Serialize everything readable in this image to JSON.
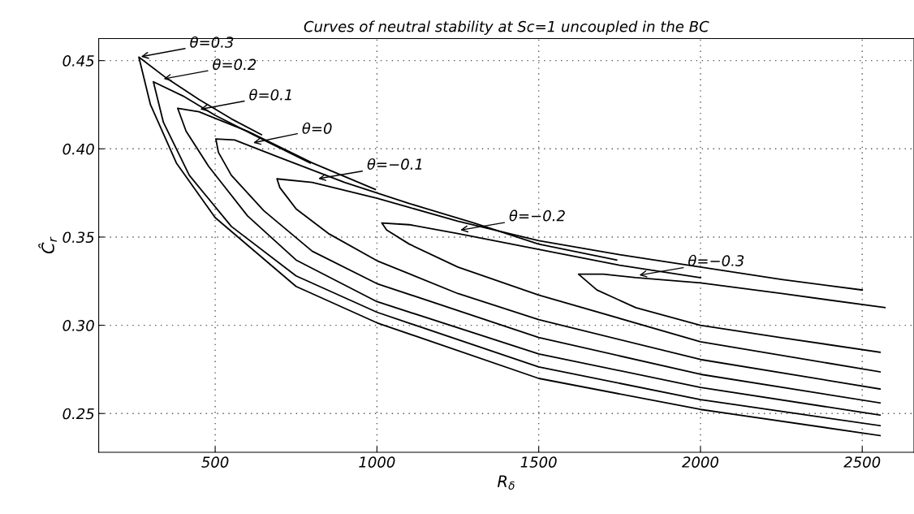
{
  "chart_data": {
    "type": "line",
    "title": "Curves of neutral stability at Sc=1 uncoupled in the BC",
    "xlabel": "R$_{δ}$",
    "ylabel": "Ĉ$_{r}$",
    "xlim": [
      140,
      2660
    ],
    "ylim": [
      0.228,
      0.4625
    ],
    "xticks": [
      500,
      1000,
      1500,
      2000,
      2500
    ],
    "yticks": [
      0.25,
      {
        "value": 0.3,
        "label": "0.30"
      },
      0.35,
      {
        "value": 0.4,
        "label": "0.40"
      },
      0.45
    ],
    "grid": true,
    "line_style": "solid",
    "marker": "none",
    "series": [
      {
        "color": "#000000",
        "x": [
          2555,
          2000,
          1500,
          1000,
          750,
          500,
          380,
          300,
          264,
          350,
          450,
          550,
          643
        ],
        "values": [
          0.2375,
          0.2523,
          0.2699,
          0.3014,
          0.322,
          0.361,
          0.392,
          0.425,
          0.452,
          0.44,
          0.428,
          0.417,
          0.408
        ]
      },
      {
        "color": "#000000",
        "x": [
          2555,
          2000,
          1500,
          1000,
          750,
          550,
          420,
          340,
          309,
          400,
          500,
          650,
          794
        ],
        "values": [
          0.2431,
          0.2579,
          0.2764,
          0.3074,
          0.328,
          0.356,
          0.385,
          0.415,
          0.438,
          0.43,
          0.419,
          0.405,
          0.392
        ]
      },
      {
        "color": "#000000",
        "x": [
          2555,
          2000,
          1500,
          1000,
          750,
          600,
          480,
          410,
          384,
          450,
          600,
          800,
          995
        ],
        "values": [
          0.2491,
          0.2648,
          0.2838,
          0.3134,
          0.337,
          0.362,
          0.39,
          0.41,
          0.423,
          0.421,
          0.41,
          0.392,
          0.377
        ]
      },
      {
        "color": "#000000",
        "x": [
          2555,
          2000,
          1500,
          1000,
          800,
          650,
          550,
          510,
          502,
          560,
          700,
          900,
          1100,
          1300,
          1500,
          1741
        ],
        "values": [
          0.256,
          0.2722,
          0.2931,
          0.3236,
          0.342,
          0.365,
          0.385,
          0.398,
          0.4056,
          0.405,
          0.395,
          0.381,
          0.369,
          0.358,
          0.346,
          0.337
        ]
      },
      {
        "color": "#000000",
        "x": [
          2555,
          2000,
          1500,
          1250,
          1000,
          850,
          750,
          700,
          691,
          800,
          1000,
          1250,
          1500,
          1750,
          2000,
          2250,
          2500
        ],
        "values": [
          0.2639,
          0.2806,
          0.3032,
          0.318,
          0.3366,
          0.352,
          0.366,
          0.378,
          0.383,
          0.381,
          0.372,
          0.359,
          0.348,
          0.34,
          0.333,
          0.326,
          0.32
        ]
      },
      {
        "color": "#000000",
        "x": [
          2555,
          2000,
          1500,
          1250,
          1100,
          1030,
          1015,
          1100,
          1250,
          1500,
          1750,
          2000
        ],
        "values": [
          0.2736,
          0.2907,
          0.3171,
          0.333,
          0.346,
          0.354,
          0.358,
          0.357,
          0.352,
          0.343,
          0.334,
          0.327
        ]
      },
      {
        "color": "#000000",
        "x": [
          2555,
          2250,
          2000,
          1800,
          1680,
          1623,
          1700,
          1800,
          2000,
          2250,
          2570
        ],
        "values": [
          0.2847,
          0.293,
          0.3,
          0.31,
          0.32,
          0.329,
          0.329,
          0.327,
          0.324,
          0.318,
          0.31
        ]
      }
    ],
    "annotations": [
      {
        "text": "θ=0.3",
        "x": 264,
        "y": 0.452
      },
      {
        "text": "θ=0.2",
        "x": 334,
        "y": 0.4394
      },
      {
        "text": "θ=0.1",
        "x": 447,
        "y": 0.4222
      },
      {
        "text": "θ=0",
        "x": 611,
        "y": 0.4032
      },
      {
        "text": "θ=−0.1",
        "x": 812,
        "y": 0.3829
      },
      {
        "text": "θ=−0.2",
        "x": 1251,
        "y": 0.3537
      },
      {
        "text": "θ=−0.3",
        "x": 1804,
        "y": 0.3282
      }
    ]
  }
}
